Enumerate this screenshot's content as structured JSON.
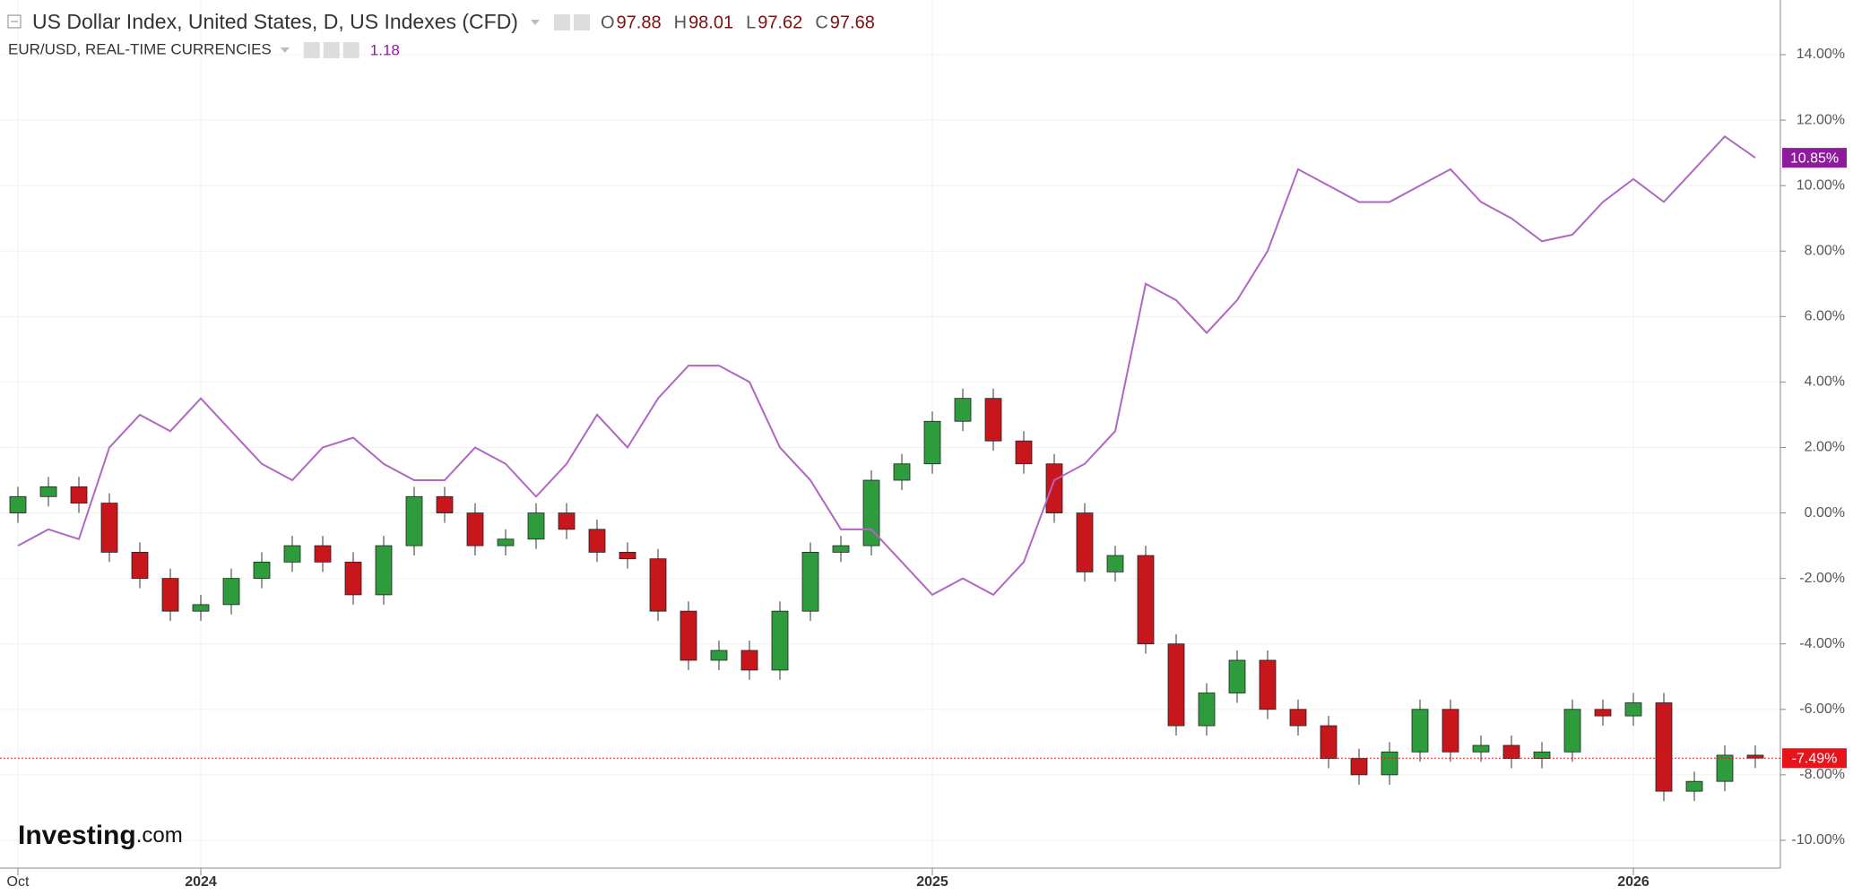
{
  "chart_data": {
    "type": "candlestick-line",
    "series": [
      {
        "name": "US Dollar Index, United States, D, US Indexes (CFD)",
        "kind": "candlestick",
        "up_color": "#2e9b3c",
        "down_color": "#c8161d",
        "ohlc_readout": [
          {
            "label": "O",
            "value": 97.88
          },
          {
            "label": "H",
            "value": 98.01
          },
          {
            "label": "L",
            "value": 97.62
          },
          {
            "label": "C",
            "value": 97.68
          }
        ],
        "open": [
          0,
          0.5,
          0.8,
          0.3,
          -1.2,
          -2,
          -3,
          -2.8,
          -2,
          -1.5,
          -1,
          -1.5,
          -2.5,
          -1,
          0.5,
          0,
          -1,
          -0.8,
          0,
          -0.5,
          -1.2,
          -1.4,
          -3,
          -4.5,
          -4.2,
          -4.8,
          -3,
          -1.2,
          -1,
          1,
          1.5,
          2.8,
          3.5,
          2.2,
          1.5,
          0,
          -1.8,
          -1.3,
          -4,
          -6.5,
          -5.5,
          -4.5,
          -6,
          -6.5,
          -7.5,
          -8,
          -7.3,
          -6,
          -7.3,
          -7.1,
          -7.5,
          -7.3,
          -6,
          -6.2,
          -5.8,
          -8.5,
          -8.2,
          -7.4
        ],
        "high": [
          0.8,
          1.1,
          1.1,
          0.6,
          -0.9,
          -1.7,
          -2.5,
          -1.7,
          -1.2,
          -0.7,
          -0.7,
          -1.2,
          -0.7,
          0.8,
          0.8,
          0.3,
          -0.5,
          0.3,
          0.3,
          -0.2,
          -0.9,
          -1.1,
          -2.7,
          -3.9,
          -3.9,
          -2.7,
          -0.9,
          -0.7,
          1.3,
          1.8,
          3.1,
          3.8,
          3.8,
          2.5,
          1.8,
          0.3,
          -1,
          -1,
          -3.7,
          -5.2,
          -4.2,
          -4.2,
          -5.7,
          -6.2,
          -7.2,
          -7,
          -5.7,
          -5.7,
          -6.8,
          -6.8,
          -7,
          -5.7,
          -5.7,
          -5.5,
          -5.5,
          -7.9,
          -7.1,
          -7.1
        ],
        "low": [
          -0.3,
          0.2,
          0,
          -1.5,
          -2.3,
          -3.3,
          -3.3,
          -3.1,
          -2.3,
          -1.8,
          -1.8,
          -2.8,
          -2.8,
          -1.3,
          -0.3,
          -1.3,
          -1.3,
          -1.1,
          -0.8,
          -1.5,
          -1.7,
          -3.3,
          -4.8,
          -4.8,
          -5.1,
          -5.1,
          -3.3,
          -1.5,
          -1.3,
          0.7,
          1.2,
          2.5,
          1.9,
          1.2,
          -0.3,
          -2.1,
          -2.1,
          -4.3,
          -6.8,
          -6.8,
          -5.8,
          -6.3,
          -6.8,
          -7.8,
          -8.3,
          -8.3,
          -7.6,
          -7.6,
          -7.6,
          -7.8,
          -7.8,
          -7.6,
          -6.5,
          -6.5,
          -8.8,
          -8.8,
          -8.5,
          -7.79
        ],
        "values": [
          0.5,
          0.8,
          0.3,
          -1.2,
          -2,
          -3,
          -2.8,
          -2,
          -1.5,
          -1,
          -1.5,
          -2.5,
          -1,
          0.5,
          0,
          -1,
          -0.8,
          0,
          -0.5,
          -1.2,
          -1.4,
          -3,
          -4.5,
          -4.2,
          -4.8,
          -3,
          -1.2,
          -1,
          1,
          1.5,
          2.8,
          3.5,
          2.2,
          1.5,
          0,
          -1.8,
          -1.3,
          -4,
          -6.5,
          -5.5,
          -4.5,
          -6,
          -6.5,
          -7.5,
          -8,
          -7.3,
          -6,
          -7.3,
          -7.1,
          -7.5,
          -7.3,
          -6,
          -6.2,
          -5.8,
          -8.5,
          -8.2,
          -7.4,
          -7.49
        ],
        "last_value": {
          "value": -7.49,
          "label": "-7.49%"
        },
        "last_color": "#e8141c"
      },
      {
        "name": "EUR/USD, REAL-TIME CURRENCIES",
        "kind": "line",
        "color": "#b066c4",
        "price": 1.18,
        "values": [
          -1,
          -0.5,
          -0.8,
          2,
          3,
          2.5,
          3.5,
          2.5,
          1.5,
          1,
          2,
          2.3,
          1.5,
          1,
          1,
          2,
          1.5,
          0.5,
          1.5,
          3,
          2,
          3.5,
          4.5,
          4.5,
          4,
          2,
          1,
          -0.5,
          -0.5,
          -1.5,
          -2.5,
          -2,
          -2.5,
          -1.5,
          1,
          1.5,
          2.5,
          7,
          6.5,
          5.5,
          6.5,
          8,
          10.5,
          10,
          9.5,
          9.5,
          10,
          10.5,
          9.5,
          9,
          8.3,
          8.5,
          9.5,
          10.2,
          9.5,
          10.5,
          11.5,
          10.85
        ],
        "last_value": {
          "value": 10.85,
          "label": "10.85%"
        },
        "last_color": "#8e1a9e"
      }
    ],
    "categories": [
      "Oct",
      null,
      null,
      null,
      null,
      null,
      "2024",
      null,
      null,
      null,
      null,
      null,
      null,
      null,
      null,
      null,
      null,
      null,
      null,
      null,
      null,
      null,
      null,
      null,
      null,
      null,
      null,
      null,
      null,
      null,
      "2025",
      null,
      null,
      null,
      null,
      null,
      null,
      null,
      null,
      null,
      null,
      null,
      null,
      null,
      null,
      null,
      null,
      null,
      null,
      null,
      null,
      null,
      null,
      "2026",
      null,
      null,
      null,
      null
    ],
    "ylim": [
      -10.85,
      15.67
    ],
    "yticks": [
      {
        "value": 14,
        "label": "14.00%"
      },
      {
        "value": 12,
        "label": "12.00%"
      },
      {
        "value": 10,
        "label": "10.00%"
      },
      {
        "value": 8,
        "label": "8.00%"
      },
      {
        "value": 6,
        "label": "6.00%"
      },
      {
        "value": 4,
        "label": "4.00%"
      },
      {
        "value": 2,
        "label": "2.00%"
      },
      {
        "value": 0,
        "label": "0.00%"
      },
      {
        "value": -2,
        "label": "-2.00%"
      },
      {
        "value": -4,
        "label": "-4.00%"
      },
      {
        "value": -6,
        "label": "-6.00%"
      },
      {
        "value": -8,
        "label": "-8.00%"
      },
      {
        "value": -10,
        "label": "-10.00%"
      }
    ],
    "grid": true,
    "logo": {
      "main": "Investing",
      "suffix": ".com"
    }
  }
}
